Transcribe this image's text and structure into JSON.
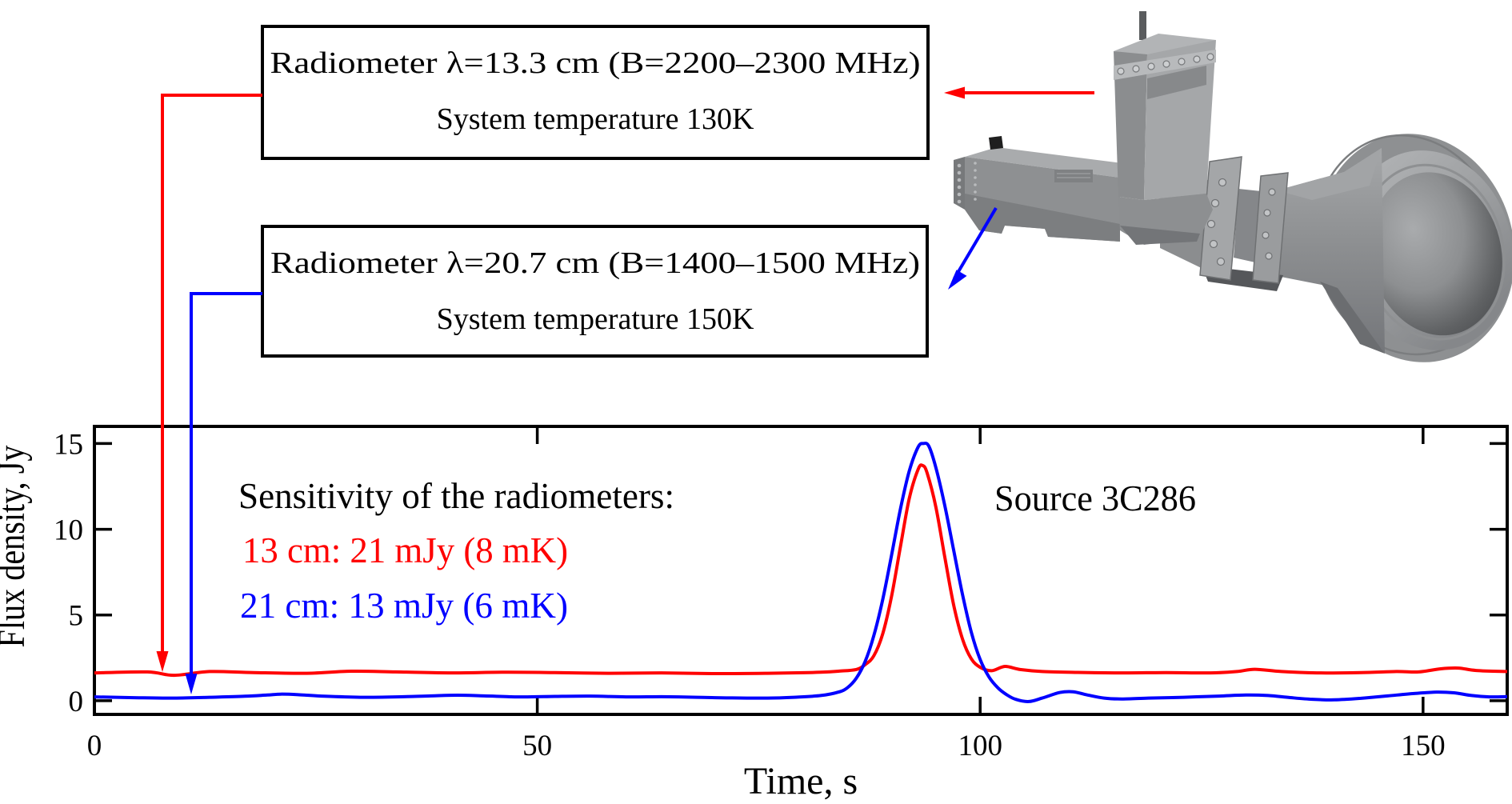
{
  "callouts": {
    "box1": {
      "line1": "Radiometer λ=13.3 cm (B=2200–2300 MHz)",
      "line2": "System temperature 130K"
    },
    "box2": {
      "line1": "Radiometer λ=20.7 cm (B=1400–1500 MHz)",
      "line2": "System temperature 150K"
    }
  },
  "plot_annotations": {
    "sensitivity_title": "Sensitivity of the radiometers:",
    "sensitivity_red": "13 cm: 21 mJy (8 mK)",
    "sensitivity_blue": "21 cm: 13 mJy (6 mK)",
    "source": "Source 3C286"
  },
  "colors": {
    "red": "#ff0000",
    "blue": "#0000ff",
    "frame": "#000000",
    "instrument_gray": "#8e9092"
  },
  "chart_data": {
    "type": "line",
    "title": "",
    "xlabel": "Time, s",
    "ylabel": "Flux density, Jy",
    "xlim": [
      0,
      159.5
    ],
    "ylim": [
      -0.8,
      16
    ],
    "xticks": [
      0,
      50,
      100,
      150
    ],
    "yticks": [
      0,
      5,
      10,
      15
    ],
    "grid": false,
    "legend_position": "none",
    "series": [
      {
        "name": "13 cm radiometer",
        "color": "#ff0000",
        "points": [
          [
            0,
            1.62
          ],
          [
            6,
            1.68
          ],
          [
            9,
            1.48
          ],
          [
            13,
            1.7
          ],
          [
            18,
            1.64
          ],
          [
            24,
            1.6
          ],
          [
            29,
            1.72
          ],
          [
            34,
            1.68
          ],
          [
            40,
            1.62
          ],
          [
            46,
            1.66
          ],
          [
            52,
            1.64
          ],
          [
            58,
            1.6
          ],
          [
            64,
            1.62
          ],
          [
            70,
            1.58
          ],
          [
            76,
            1.6
          ],
          [
            80,
            1.63
          ],
          [
            82,
            1.66
          ],
          [
            84,
            1.72
          ],
          [
            86,
            1.82
          ],
          [
            87,
            2.1
          ],
          [
            88,
            2.62
          ],
          [
            89,
            3.9
          ],
          [
            90,
            6.1
          ],
          [
            91,
            9.0
          ],
          [
            92,
            11.8
          ],
          [
            93,
            13.5
          ],
          [
            93.5,
            13.72
          ],
          [
            94,
            13.3
          ],
          [
            95,
            11.3
          ],
          [
            96,
            8.4
          ],
          [
            97,
            5.6
          ],
          [
            98,
            3.6
          ],
          [
            99,
            2.45
          ],
          [
            100,
            1.95
          ],
          [
            101.3,
            1.75
          ],
          [
            102.8,
            2.0
          ],
          [
            104.5,
            1.82
          ],
          [
            107,
            1.7
          ],
          [
            111,
            1.65
          ],
          [
            116,
            1.62
          ],
          [
            121,
            1.64
          ],
          [
            126,
            1.62
          ],
          [
            129,
            1.7
          ],
          [
            131,
            1.83
          ],
          [
            134,
            1.7
          ],
          [
            138,
            1.62
          ],
          [
            143,
            1.64
          ],
          [
            147,
            1.7
          ],
          [
            149.5,
            1.68
          ],
          [
            152,
            1.86
          ],
          [
            154,
            1.9
          ],
          [
            156,
            1.76
          ],
          [
            159.5,
            1.7
          ]
        ]
      },
      {
        "name": "21 cm radiometer",
        "color": "#0000ff",
        "points": [
          [
            0,
            0.22
          ],
          [
            5,
            0.17
          ],
          [
            9,
            0.15
          ],
          [
            13,
            0.2
          ],
          [
            17,
            0.26
          ],
          [
            19.5,
            0.33
          ],
          [
            21,
            0.38
          ],
          [
            23,
            0.35
          ],
          [
            26,
            0.26
          ],
          [
            30,
            0.2
          ],
          [
            34,
            0.22
          ],
          [
            38,
            0.28
          ],
          [
            41,
            0.32
          ],
          [
            44,
            0.28
          ],
          [
            48,
            0.22
          ],
          [
            52,
            0.25
          ],
          [
            56,
            0.27
          ],
          [
            60,
            0.22
          ],
          [
            64,
            0.23
          ],
          [
            68,
            0.2
          ],
          [
            72,
            0.16
          ],
          [
            76,
            0.15
          ],
          [
            79,
            0.2
          ],
          [
            82,
            0.3
          ],
          [
            84,
            0.5
          ],
          [
            85,
            0.75
          ],
          [
            86,
            1.3
          ],
          [
            87,
            2.27
          ],
          [
            88,
            3.8
          ],
          [
            89,
            5.9
          ],
          [
            90,
            8.5
          ],
          [
            91,
            11.2
          ],
          [
            92,
            13.4
          ],
          [
            93,
            14.8
          ],
          [
            93.6,
            15.0
          ],
          [
            94.2,
            14.85
          ],
          [
            95,
            13.6
          ],
          [
            96,
            11.4
          ],
          [
            97,
            8.8
          ],
          [
            98,
            6.2
          ],
          [
            99,
            4.0
          ],
          [
            100,
            2.4
          ],
          [
            101,
            1.38
          ],
          [
            102,
            0.75
          ],
          [
            103,
            0.35
          ],
          [
            104,
            0.08
          ],
          [
            105.5,
            -0.05
          ],
          [
            107,
            0.15
          ],
          [
            109,
            0.48
          ],
          [
            110.5,
            0.52
          ],
          [
            112,
            0.35
          ],
          [
            114,
            0.15
          ],
          [
            116,
            0.1
          ],
          [
            119,
            0.15
          ],
          [
            123,
            0.2
          ],
          [
            127,
            0.27
          ],
          [
            130,
            0.33
          ],
          [
            132.5,
            0.3
          ],
          [
            135,
            0.18
          ],
          [
            137.5,
            0.08
          ],
          [
            140,
            0.05
          ],
          [
            143,
            0.14
          ],
          [
            146,
            0.28
          ],
          [
            149,
            0.42
          ],
          [
            151.5,
            0.5
          ],
          [
            153.5,
            0.46
          ],
          [
            155.5,
            0.3
          ],
          [
            157.5,
            0.22
          ],
          [
            159.5,
            0.24
          ]
        ]
      }
    ]
  }
}
